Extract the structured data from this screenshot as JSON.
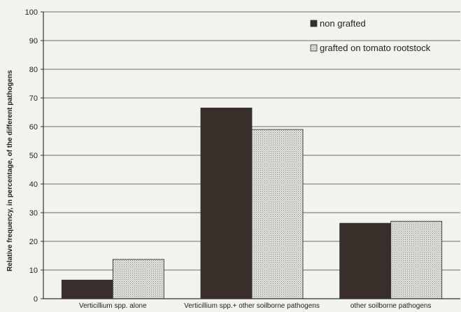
{
  "chart_data": {
    "type": "bar",
    "title": "",
    "xlabel": "",
    "ylabel": "Relative frequency, in percentage, of the different pathogens",
    "ylim": [
      0,
      100
    ],
    "yticks": [
      0,
      10,
      20,
      30,
      40,
      50,
      60,
      70,
      80,
      90,
      100
    ],
    "categories": [
      "Verticillium spp. alone",
      "Verticillium  spp.+ other soilborne pathogens",
      "other soilborne pathogens"
    ],
    "series": [
      {
        "name": "non grafted",
        "values": [
          6.5,
          66.5,
          26.3
        ],
        "color": "#3a2e2a",
        "pattern": "solid"
      },
      {
        "name": "grafted on tomato rootstock",
        "values": [
          13.7,
          59,
          27
        ],
        "color": "#d8d8d4",
        "pattern": "dotted"
      }
    ],
    "grid": true,
    "legend_position": "top-right"
  }
}
